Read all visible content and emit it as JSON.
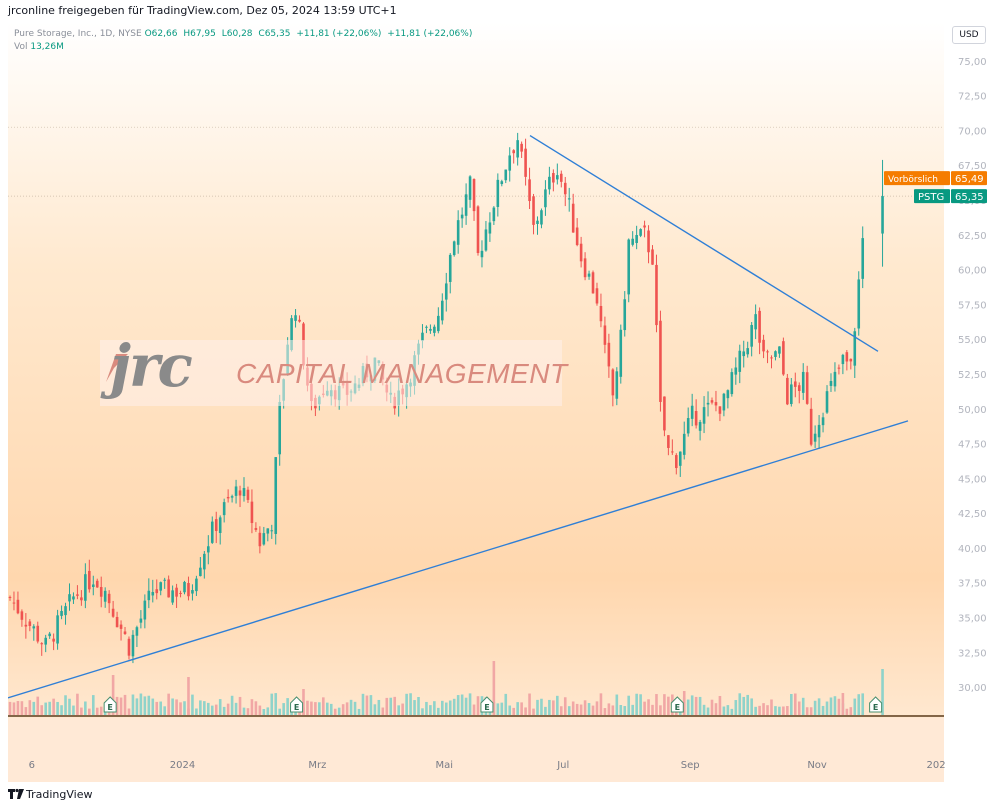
{
  "header": {
    "publisher": "jrconline freigegeben für TradingView.com, Dez 05, 2024 13:59 UTC+1"
  },
  "legend": {
    "symbol": "Pure Storage, Inc., 1D, NYSE",
    "open": "O62,66",
    "high": "H67,95",
    "low": "L60,28",
    "close": "C65,35",
    "change1": "+11,81 (+22,06%)",
    "change2": "+11,81 (+22,06%)",
    "vol_label": "Vol",
    "vol_value": "13,26M"
  },
  "currency_button": "USD",
  "watermark": {
    "logo_text": "jrc",
    "company": "CAPITAL MANAGEMENT"
  },
  "price_labels": {
    "premarket_label": "Vorbörslich",
    "premarket_value": "65,49",
    "ticker_label": "PSTG",
    "ticker_value": "65,35"
  },
  "footer": {
    "brand": "TradingView"
  },
  "colors": {
    "up": "#26a69a",
    "down": "#ef5350",
    "trendline": "#2f7fd6",
    "premarket": "#f57c00",
    "ticker": "#089981"
  },
  "chart_data": {
    "type": "candlestick",
    "title": "Pure Storage, Inc., 1D, NYSE",
    "x_ticks": [
      "6",
      "2024",
      "Mrz",
      "Mai",
      "Jul",
      "Sep",
      "Nov",
      "202"
    ],
    "y_ticks": [
      "75,00",
      "72,50",
      "70,00",
      "67,50",
      "65,00",
      "62,50",
      "60,00",
      "57,50",
      "55,00",
      "52,50",
      "50,00",
      "47,50",
      "45,00",
      "42,50",
      "40,00",
      "37,50",
      "35,00",
      "32,50",
      "30,00"
    ],
    "y_range": [
      28.5,
      77.5
    ],
    "series": [
      {
        "name": "PSTG",
        "points": [
          {
            "x": 0,
            "y": 36.5
          },
          {
            "x": 9,
            "y": 33.0
          },
          {
            "x": 16,
            "y": 36.5
          },
          {
            "x": 21,
            "y": 38.0
          },
          {
            "x": 24,
            "y": 37.0
          },
          {
            "x": 30,
            "y": 33.0
          },
          {
            "x": 36,
            "y": 37.0
          },
          {
            "x": 45,
            "y": 37.0
          },
          {
            "x": 49,
            "y": 40.0
          },
          {
            "x": 53,
            "y": 42.5
          },
          {
            "x": 58,
            "y": 44.5
          },
          {
            "x": 63,
            "y": 40.5
          },
          {
            "x": 66,
            "y": 42.0
          },
          {
            "x": 68,
            "y": 50.0
          },
          {
            "x": 70,
            "y": 55.0
          },
          {
            "x": 72,
            "y": 57.5
          },
          {
            "x": 76,
            "y": 50.0
          },
          {
            "x": 80,
            "y": 52.0
          },
          {
            "x": 84,
            "y": 51.0
          },
          {
            "x": 88,
            "y": 52.0
          },
          {
            "x": 92,
            "y": 53.5
          },
          {
            "x": 96,
            "y": 50.5
          },
          {
            "x": 100,
            "y": 52.0
          },
          {
            "x": 104,
            "y": 55.0
          },
          {
            "x": 108,
            "y": 57.0
          },
          {
            "x": 112,
            "y": 62.5
          },
          {
            "x": 116,
            "y": 66.0
          },
          {
            "x": 118,
            "y": 61.0
          },
          {
            "x": 122,
            "y": 65.0
          },
          {
            "x": 126,
            "y": 68.5
          },
          {
            "x": 128,
            "y": 69.5
          },
          {
            "x": 132,
            "y": 63.0
          },
          {
            "x": 135,
            "y": 65.5
          },
          {
            "x": 138,
            "y": 67.5
          },
          {
            "x": 141,
            "y": 64.5
          },
          {
            "x": 144,
            "y": 61.0
          },
          {
            "x": 148,
            "y": 58.0
          },
          {
            "x": 150,
            "y": 54.0
          },
          {
            "x": 152,
            "y": 51.0
          },
          {
            "x": 154,
            "y": 55.0
          },
          {
            "x": 156,
            "y": 62.0
          },
          {
            "x": 160,
            "y": 62.5
          },
          {
            "x": 162,
            "y": 61.0
          },
          {
            "x": 164,
            "y": 50.0
          },
          {
            "x": 166,
            "y": 47.0
          },
          {
            "x": 168,
            "y": 46.5
          },
          {
            "x": 172,
            "y": 49.5
          },
          {
            "x": 176,
            "y": 50.0
          },
          {
            "x": 180,
            "y": 50.5
          },
          {
            "x": 184,
            "y": 53.5
          },
          {
            "x": 188,
            "y": 56.5
          },
          {
            "x": 190,
            "y": 53.5
          },
          {
            "x": 194,
            "y": 54.0
          },
          {
            "x": 196,
            "y": 51.0
          },
          {
            "x": 200,
            "y": 52.0
          },
          {
            "x": 202,
            "y": 48.0
          },
          {
            "x": 206,
            "y": 51.0
          },
          {
            "x": 210,
            "y": 53.5
          },
          {
            "x": 212,
            "y": 53.0
          },
          {
            "x": 216,
            "y": 65.35
          }
        ]
      }
    ],
    "volume_markers": [
      "E",
      "E",
      "E",
      "E",
      "E"
    ],
    "annotations": [
      "Vorbörslich 65,49",
      "PSTG 65,35"
    ]
  }
}
